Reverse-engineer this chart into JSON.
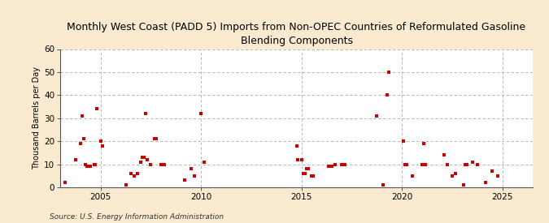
{
  "title": "Monthly West Coast (PADD 5) Imports from Non-OPEC Countries of Reformulated Gasoline\nBlending Components",
  "ylabel": "Thousand Barrels per Day",
  "source": "Source: U.S. Energy Information Administration",
  "background_color": "#faebd0",
  "plot_bg_color": "#ffffff",
  "dot_color": "#cc0000",
  "xlim": [
    2003.0,
    2026.5
  ],
  "ylim": [
    0,
    60
  ],
  "yticks": [
    0,
    10,
    20,
    30,
    40,
    50,
    60
  ],
  "xticks": [
    2005,
    2010,
    2015,
    2020,
    2025
  ],
  "data_points": [
    [
      2003.25,
      2
    ],
    [
      2003.75,
      12
    ],
    [
      2004.0,
      19
    ],
    [
      2004.08,
      31
    ],
    [
      2004.17,
      21
    ],
    [
      2004.25,
      10
    ],
    [
      2004.33,
      9
    ],
    [
      2004.5,
      9
    ],
    [
      2004.67,
      10
    ],
    [
      2004.75,
      10
    ],
    [
      2004.83,
      34
    ],
    [
      2005.0,
      20
    ],
    [
      2005.08,
      18
    ],
    [
      2006.25,
      1
    ],
    [
      2006.5,
      6
    ],
    [
      2006.67,
      5
    ],
    [
      2006.83,
      6
    ],
    [
      2007.0,
      11
    ],
    [
      2007.08,
      13
    ],
    [
      2007.17,
      13
    ],
    [
      2007.25,
      32
    ],
    [
      2007.33,
      12
    ],
    [
      2007.5,
      10
    ],
    [
      2007.67,
      21
    ],
    [
      2007.75,
      21
    ],
    [
      2008.0,
      10
    ],
    [
      2008.17,
      10
    ],
    [
      2009.17,
      3
    ],
    [
      2009.5,
      8
    ],
    [
      2009.67,
      5
    ],
    [
      2010.0,
      32
    ],
    [
      2010.17,
      11
    ],
    [
      2014.75,
      18
    ],
    [
      2014.83,
      12
    ],
    [
      2015.0,
      12
    ],
    [
      2015.08,
      6
    ],
    [
      2015.17,
      6
    ],
    [
      2015.25,
      8
    ],
    [
      2015.33,
      8
    ],
    [
      2015.5,
      5
    ],
    [
      2015.58,
      5
    ],
    [
      2016.33,
      9
    ],
    [
      2016.5,
      9
    ],
    [
      2016.67,
      10
    ],
    [
      2017.0,
      10
    ],
    [
      2017.17,
      10
    ],
    [
      2018.75,
      31
    ],
    [
      2019.08,
      1
    ],
    [
      2019.25,
      40
    ],
    [
      2019.33,
      50
    ],
    [
      2020.08,
      20
    ],
    [
      2020.17,
      10
    ],
    [
      2020.25,
      10
    ],
    [
      2020.5,
      5
    ],
    [
      2021.0,
      10
    ],
    [
      2021.08,
      19
    ],
    [
      2021.17,
      10
    ],
    [
      2022.08,
      14
    ],
    [
      2022.25,
      10
    ],
    [
      2022.5,
      5
    ],
    [
      2022.67,
      6
    ],
    [
      2023.08,
      1
    ],
    [
      2023.17,
      10
    ],
    [
      2023.25,
      10
    ],
    [
      2023.5,
      11
    ],
    [
      2023.75,
      10
    ],
    [
      2024.17,
      2
    ],
    [
      2024.5,
      7
    ],
    [
      2024.75,
      5
    ]
  ]
}
